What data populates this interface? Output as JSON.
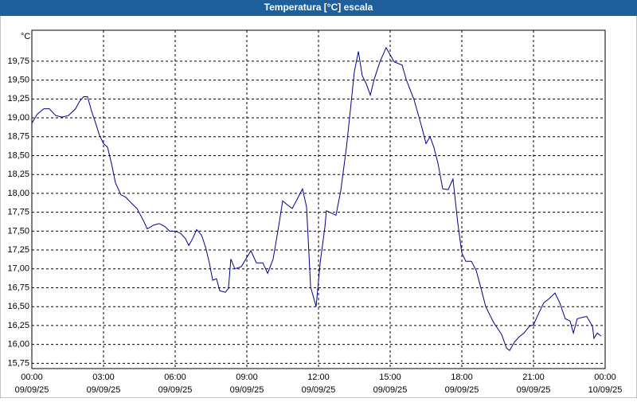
{
  "chart_data": {
    "type": "line",
    "title": "Temperatura [°C] escala",
    "y_label": "°C",
    "x": [
      0,
      0.23,
      0.5,
      0.73,
      1,
      1.27,
      1.53,
      1.83,
      2,
      2.17,
      2.33,
      2.5,
      2.67,
      2.83,
      3,
      3.17,
      3.33,
      3.5,
      3.73,
      3.93,
      4.17,
      4.4,
      4.67,
      4.83,
      5.1,
      5.33,
      5.57,
      5.77,
      6,
      6.23,
      6.43,
      6.57,
      6.73,
      6.9,
      7.1,
      7.27,
      7.43,
      7.57,
      7.73,
      7.87,
      8.1,
      8.23,
      8.33,
      8.5,
      8.77,
      9.17,
      9.4,
      9.67,
      9.87,
      10.1,
      10.33,
      10.5,
      10.73,
      10.9,
      11.07,
      11.33,
      11.5,
      11.67,
      11.9,
      12.07,
      12.27,
      12.33,
      12.6,
      12.73,
      12.93,
      13.17,
      13.33,
      13.5,
      13.67,
      13.83,
      14,
      14.17,
      14.33,
      14.57,
      14.83,
      15.17,
      15.5,
      15.67,
      16,
      16.33,
      16.5,
      16.67,
      16.83,
      17,
      17.2,
      17.43,
      17.63,
      17.83,
      18,
      18.17,
      18.4,
      18.6,
      18.83,
      19,
      19.33,
      19.67,
      19.87,
      20,
      20.2,
      20.4,
      20.6,
      20.83,
      21,
      21.23,
      21.43,
      21.67,
      21.9,
      22.1,
      22.33,
      22.53,
      22.67,
      22.83,
      23.07,
      23.23,
      23.47,
      23.53,
      23.67,
      23.83
    ],
    "series": [
      {
        "name": "Temperatura",
        "color": "#00008b",
        "values": [
          18.93,
          19.05,
          19.12,
          19.12,
          19.03,
          19.01,
          19.03,
          19.12,
          19.22,
          19.28,
          19.28,
          19.09,
          18.93,
          18.77,
          18.66,
          18.61,
          18.4,
          18.14,
          17.98,
          17.95,
          17.87,
          17.8,
          17.64,
          17.53,
          17.58,
          17.6,
          17.56,
          17.5,
          17.5,
          17.47,
          17.4,
          17.31,
          17.4,
          17.52,
          17.45,
          17.29,
          17.08,
          16.85,
          16.87,
          16.71,
          16.69,
          16.74,
          17.13,
          17.0,
          17.03,
          17.24,
          17.08,
          17.08,
          16.94,
          17.13,
          17.56,
          17.9,
          17.84,
          17.8,
          17.9,
          18.06,
          17.82,
          16.76,
          16.5,
          17.08,
          17.56,
          17.77,
          17.73,
          17.71,
          18.03,
          18.61,
          19.09,
          19.61,
          19.88,
          19.56,
          19.45,
          19.3,
          19.51,
          19.74,
          19.93,
          19.74,
          19.7,
          19.51,
          19.24,
          18.87,
          18.66,
          18.75,
          18.61,
          18.4,
          18.06,
          18.05,
          18.19,
          17.61,
          17.21,
          17.1,
          17.1,
          16.98,
          16.71,
          16.5,
          16.29,
          16.13,
          15.95,
          15.92,
          16.03,
          16.1,
          16.15,
          16.24,
          16.26,
          16.42,
          16.55,
          16.61,
          16.68,
          16.55,
          16.34,
          16.31,
          16.15,
          16.34,
          16.36,
          16.37,
          16.24,
          16.08,
          16.15,
          16.11
        ]
      }
    ],
    "xlim": [
      0,
      24
    ],
    "xticks": [
      {
        "value": 0,
        "label": "00:00"
      },
      {
        "value": 3,
        "label": "03:00"
      },
      {
        "value": 6,
        "label": "06:00"
      },
      {
        "value": 9,
        "label": "09:00"
      },
      {
        "value": 12,
        "label": "12:00"
      },
      {
        "value": 15,
        "label": "15:00"
      },
      {
        "value": 18,
        "label": "18:00"
      },
      {
        "value": 21,
        "label": "21:00"
      },
      {
        "value": 24,
        "label": "00:00"
      }
    ],
    "xtick_dates": [
      "09/09/25",
      "09/09/25",
      "09/09/25",
      "09/09/25",
      "09/09/25",
      "09/09/25",
      "09/09/25",
      "09/09/25",
      "10/09/25"
    ],
    "ylim": [
      15.68,
      20.16
    ],
    "yticks": [
      {
        "value": 15.75,
        "label": "15,75"
      },
      {
        "value": 16,
        "label": "16,00"
      },
      {
        "value": 16.25,
        "label": "16,25"
      },
      {
        "value": 16.5,
        "label": "16,50"
      },
      {
        "value": 16.75,
        "label": "16,75"
      },
      {
        "value": 17,
        "label": "17,00"
      },
      {
        "value": 17.25,
        "label": "17,25"
      },
      {
        "value": 17.5,
        "label": "17,50"
      },
      {
        "value": 17.75,
        "label": "17,75"
      },
      {
        "value": 18,
        "label": "18,00"
      },
      {
        "value": 18.25,
        "label": "18,25"
      },
      {
        "value": 18.5,
        "label": "18,50"
      },
      {
        "value": 18.75,
        "label": "18,75"
      },
      {
        "value": 19,
        "label": "19,00"
      },
      {
        "value": 19.25,
        "label": "19,25"
      },
      {
        "value": 19.5,
        "label": "19,50"
      },
      {
        "value": 19.75,
        "label": "19,75"
      }
    ],
    "grid": true
  }
}
